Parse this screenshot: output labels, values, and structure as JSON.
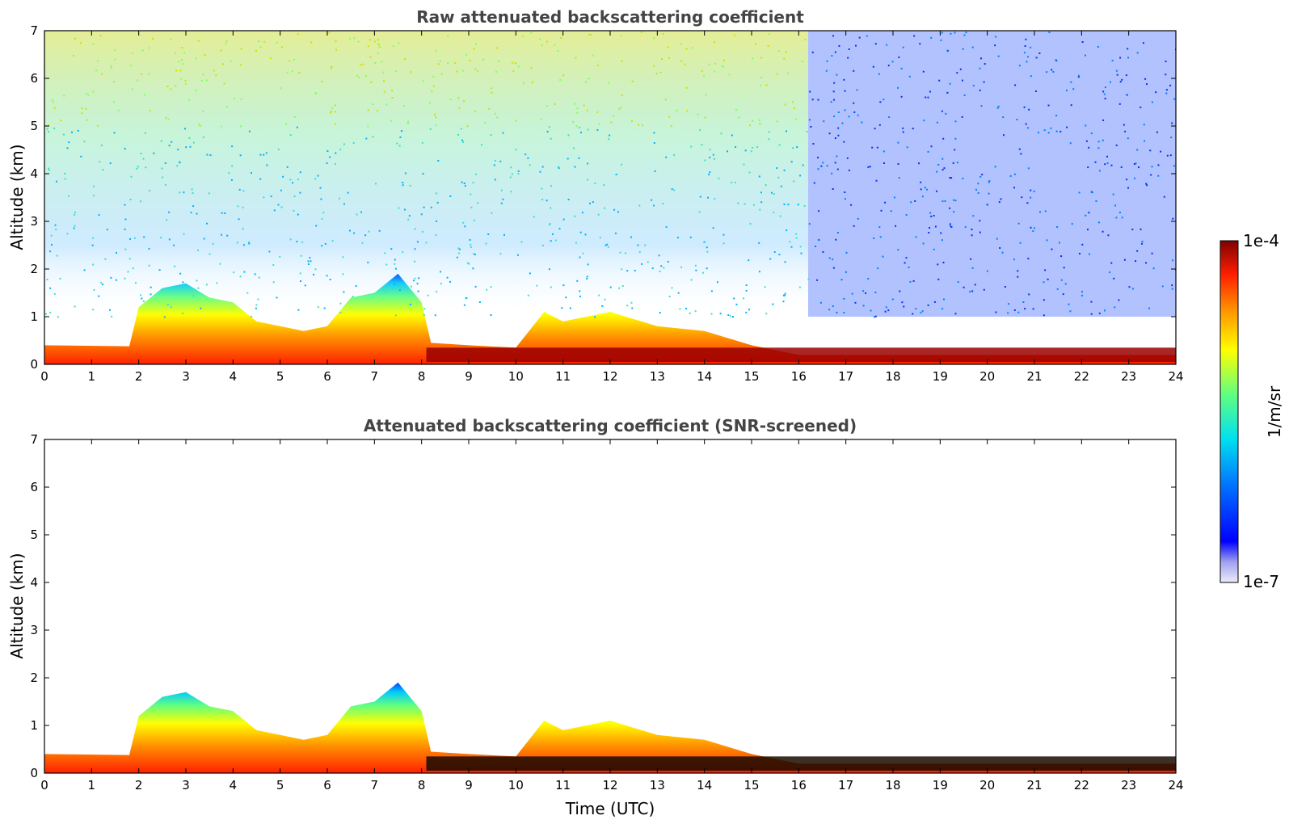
{
  "chart_data": [
    {
      "type": "heatmap",
      "title": "Raw attenuated backscattering coefficient",
      "xlabel": "",
      "ylabel": "Altitude (km)",
      "xlim": [
        0,
        24
      ],
      "ylim": [
        0,
        7
      ],
      "xticks": [
        0,
        1,
        2,
        3,
        4,
        5,
        6,
        7,
        8,
        9,
        10,
        11,
        12,
        13,
        14,
        15,
        16,
        17,
        18,
        19,
        20,
        21,
        22,
        23,
        24
      ],
      "yticks": [
        0,
        1,
        2,
        3,
        4,
        5,
        6,
        7
      ],
      "grid": false,
      "boundary_layer_top_km": [
        {
          "t": 0,
          "z": 0.4
        },
        {
          "t": 1.8,
          "z": 0.38
        },
        {
          "t": 2.0,
          "z": 1.2
        },
        {
          "t": 2.5,
          "z": 1.6
        },
        {
          "t": 3.0,
          "z": 1.7
        },
        {
          "t": 3.5,
          "z": 1.4
        },
        {
          "t": 4.0,
          "z": 1.3
        },
        {
          "t": 4.5,
          "z": 0.9
        },
        {
          "t": 5.0,
          "z": 0.8
        },
        {
          "t": 5.5,
          "z": 0.7
        },
        {
          "t": 6.0,
          "z": 0.8
        },
        {
          "t": 6.5,
          "z": 1.4
        },
        {
          "t": 7.0,
          "z": 1.5
        },
        {
          "t": 7.5,
          "z": 1.9
        },
        {
          "t": 8.0,
          "z": 1.3
        },
        {
          "t": 8.2,
          "z": 0.45
        },
        {
          "t": 9.0,
          "z": 0.4
        },
        {
          "t": 10.0,
          "z": 0.35
        },
        {
          "t": 10.6,
          "z": 1.1
        },
        {
          "t": 11.0,
          "z": 0.9
        },
        {
          "t": 11.5,
          "z": 1.0
        },
        {
          "t": 12.0,
          "z": 1.1
        },
        {
          "t": 13.0,
          "z": 0.8
        },
        {
          "t": 14.0,
          "z": 0.7
        },
        {
          "t": 15.0,
          "z": 0.4
        },
        {
          "t": 16.0,
          "z": 0.2
        },
        {
          "t": 24.0,
          "z": 0.2
        }
      ]
    },
    {
      "type": "heatmap",
      "title": "Attenuated backscattering coefficient (SNR-screened)",
      "xlabel": "Time (UTC)",
      "ylabel": "Altitude (km)",
      "xlim": [
        0,
        24
      ],
      "ylim": [
        0,
        7
      ],
      "xticks": [
        0,
        1,
        2,
        3,
        4,
        5,
        6,
        7,
        8,
        9,
        10,
        11,
        12,
        13,
        14,
        15,
        16,
        17,
        18,
        19,
        20,
        21,
        22,
        23,
        24
      ],
      "yticks": [
        0,
        1,
        2,
        3,
        4,
        5,
        6,
        7
      ],
      "grid": false
    }
  ],
  "colorbar": {
    "label": "1/m/sr",
    "max_label": "1e-4",
    "min_label": "1e-7",
    "range": [
      1e-07,
      0.0001
    ],
    "scale": "log",
    "colors": [
      "#e8e8f8",
      "#9090f0",
      "#0000ff",
      "#0080ff",
      "#00e0ff",
      "#60ff90",
      "#ffff00",
      "#ff9000",
      "#ff2000",
      "#800000"
    ]
  }
}
